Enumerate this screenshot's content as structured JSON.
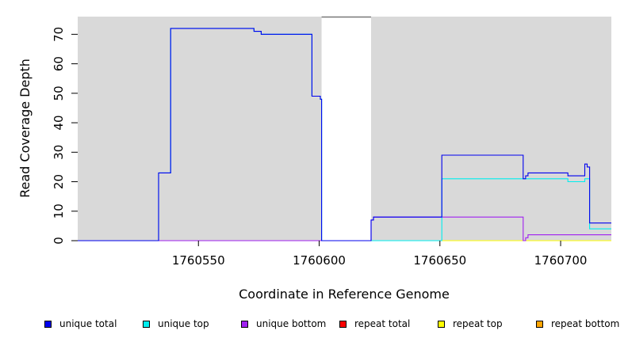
{
  "chart_data": {
    "type": "line",
    "title": "",
    "xlabel": "Coordinate in Reference Genome",
    "ylabel": "Read Coverage Depth",
    "xlim": [
      1760500,
      1760721
    ],
    "ylim": [
      0,
      76
    ],
    "xticks": [
      1760550,
      1760600,
      1760650,
      1760700
    ],
    "xtick_labels": [
      "1760550",
      "1760600",
      "1760650",
      "1760700"
    ],
    "yticks": [
      0,
      10,
      20,
      30,
      40,
      50,
      60,
      70
    ],
    "ytick_labels": [
      "0",
      "10",
      "20",
      "30",
      "40",
      "50",
      "60",
      "70"
    ],
    "background_shading": [
      {
        "from": 1760500,
        "to": 1760601,
        "color": "#d9d9d9"
      },
      {
        "from": 1760621.5,
        "to": 1760721,
        "color": "#d9d9d9"
      }
    ],
    "gap_region": {
      "from": 1760601,
      "to": 1760621.5
    },
    "legend_placement": "bottom",
    "series": [
      {
        "name": "unique total",
        "color": "#0000ee",
        "step": true,
        "points": [
          [
            1760500,
            0
          ],
          [
            1760533.5,
            0
          ],
          [
            1760533.5,
            23
          ],
          [
            1760538.5,
            23
          ],
          [
            1760538.5,
            72
          ],
          [
            1760573,
            72
          ],
          [
            1760573,
            71
          ],
          [
            1760576,
            71
          ],
          [
            1760576,
            70
          ],
          [
            1760597,
            70
          ],
          [
            1760597,
            49
          ],
          [
            1760600.5,
            49
          ],
          [
            1760600.5,
            48
          ],
          [
            1760601,
            48
          ],
          [
            1760601,
            0
          ],
          [
            1760621.5,
            0
          ],
          [
            1760621.5,
            7
          ],
          [
            1760622.5,
            7
          ],
          [
            1760622.5,
            8
          ],
          [
            1760650.8,
            8
          ],
          [
            1760650.8,
            29
          ],
          [
            1760684.5,
            29
          ],
          [
            1760684.5,
            21
          ],
          [
            1760685.5,
            21
          ],
          [
            1760685.5,
            22
          ],
          [
            1760686.5,
            22
          ],
          [
            1760686.5,
            23
          ],
          [
            1760703,
            23
          ],
          [
            1760703,
            22
          ],
          [
            1760710,
            22
          ],
          [
            1760710,
            26
          ],
          [
            1760711,
            26
          ],
          [
            1760711,
            25
          ],
          [
            1760712,
            25
          ],
          [
            1760712,
            6
          ],
          [
            1760721,
            6
          ]
        ]
      },
      {
        "name": "unique top",
        "color": "#00eeee",
        "step": true,
        "points": [
          [
            1760500,
            0
          ],
          [
            1760533.5,
            0
          ],
          [
            1760533.5,
            23
          ],
          [
            1760538.5,
            23
          ],
          [
            1760538.5,
            72
          ],
          [
            1760573,
            72
          ],
          [
            1760573,
            71
          ],
          [
            1760576,
            71
          ],
          [
            1760576,
            70
          ],
          [
            1760597,
            70
          ],
          [
            1760597,
            49
          ],
          [
            1760600.5,
            49
          ],
          [
            1760600.5,
            48
          ],
          [
            1760601,
            48
          ],
          [
            1760601,
            0
          ],
          [
            1760650.8,
            0
          ],
          [
            1760650.8,
            21
          ],
          [
            1760703,
            21
          ],
          [
            1760703,
            20
          ],
          [
            1760710,
            20
          ],
          [
            1760710,
            21
          ],
          [
            1760712,
            21
          ],
          [
            1760712,
            4
          ],
          [
            1760721,
            4
          ]
        ]
      },
      {
        "name": "unique bottom",
        "color": "#a020f0",
        "step": true,
        "points": [
          [
            1760500,
            0
          ],
          [
            1760621.5,
            0
          ],
          [
            1760621.5,
            7
          ],
          [
            1760622.5,
            7
          ],
          [
            1760622.5,
            8
          ],
          [
            1760684.5,
            8
          ],
          [
            1760684.5,
            0
          ],
          [
            1760685.5,
            0
          ],
          [
            1760685.5,
            1
          ],
          [
            1760686.5,
            1
          ],
          [
            1760686.5,
            2
          ],
          [
            1760721,
            2
          ]
        ]
      },
      {
        "name": "repeat total",
        "color": "#ff0000",
        "step": true,
        "points": [
          [
            1760500,
            0
          ],
          [
            1760601,
            0
          ]
        ]
      },
      {
        "name": "repeat top",
        "color": "#ffff00",
        "step": true,
        "points": [
          [
            1760621.5,
            0
          ],
          [
            1760721,
            0
          ]
        ]
      },
      {
        "name": "repeat bottom",
        "color": "#ffa500",
        "step": true,
        "points": [
          [
            1760650.8,
            0
          ],
          [
            1760721,
            0
          ]
        ]
      }
    ]
  }
}
